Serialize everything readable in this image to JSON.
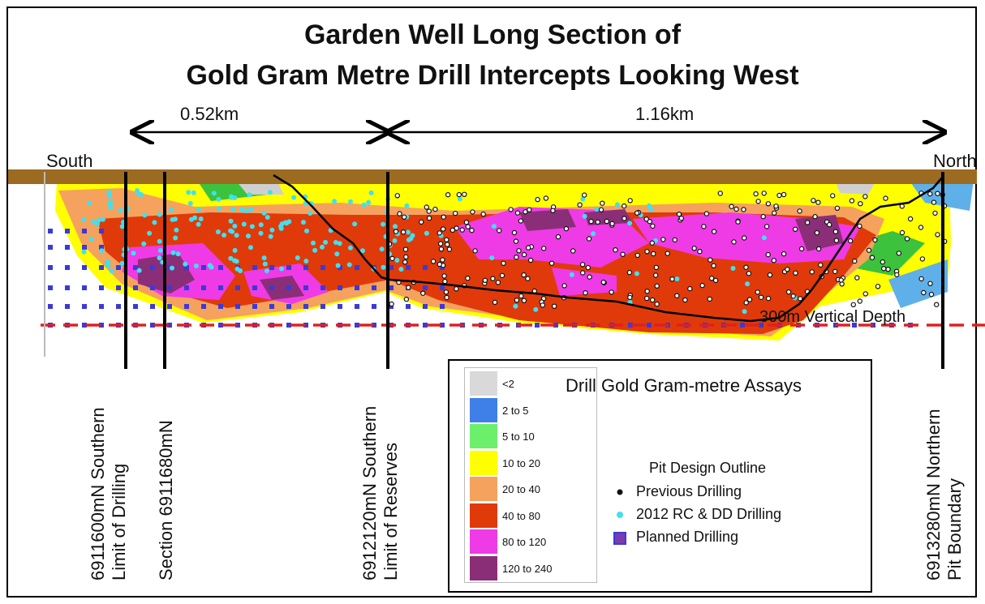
{
  "title": {
    "line1": "Garden Well Long Section of",
    "line2": "Gold Gram Metre Drill Intercepts Looking West"
  },
  "distances": {
    "left": "0.52km",
    "right": "1.16km"
  },
  "directions": {
    "south": "South",
    "north": "North"
  },
  "sections": {
    "s1_line1": "6911600mN Southern",
    "s1_line2": "Limit of Drilling",
    "s2": "Section 6911680mN",
    "s3_line1": "6912120mN Southern",
    "s3_line2": "Limit of Reserves",
    "s4_line1": "6913280mN Northern",
    "s4_line2": "Pit Boundary"
  },
  "depth_label": "300m Vertical Depth",
  "legend": {
    "title": "Drill Gold Gram-metre Assays",
    "bins": [
      {
        "label": "<2",
        "color": "#d9d9d9"
      },
      {
        "label": "2 to 5",
        "color": "#3f7fe8"
      },
      {
        "label": "5 to 10",
        "color": "#6cf06c"
      },
      {
        "label": "10 to 20",
        "color": "#ffff00"
      },
      {
        "label": "20 to 40",
        "color": "#f5a25e"
      },
      {
        "label": "40 to 80",
        "color": "#e03a0a"
      },
      {
        "label": "80 to 120",
        "color": "#ee3be6"
      },
      {
        "label": "120 to 240",
        "color": "#8b2e78"
      }
    ],
    "pit_outline": "Pit Design Outline",
    "previous": "Previous Drilling",
    "rc_dd": "2012 RC & DD Drilling",
    "planned": "Planned Drilling"
  },
  "colors": {
    "surface": "#9c6b21",
    "depth_line": "#e02020",
    "planned": "#3a3ad8",
    "rc": "#40e0f0",
    "previous": "#111111"
  }
}
